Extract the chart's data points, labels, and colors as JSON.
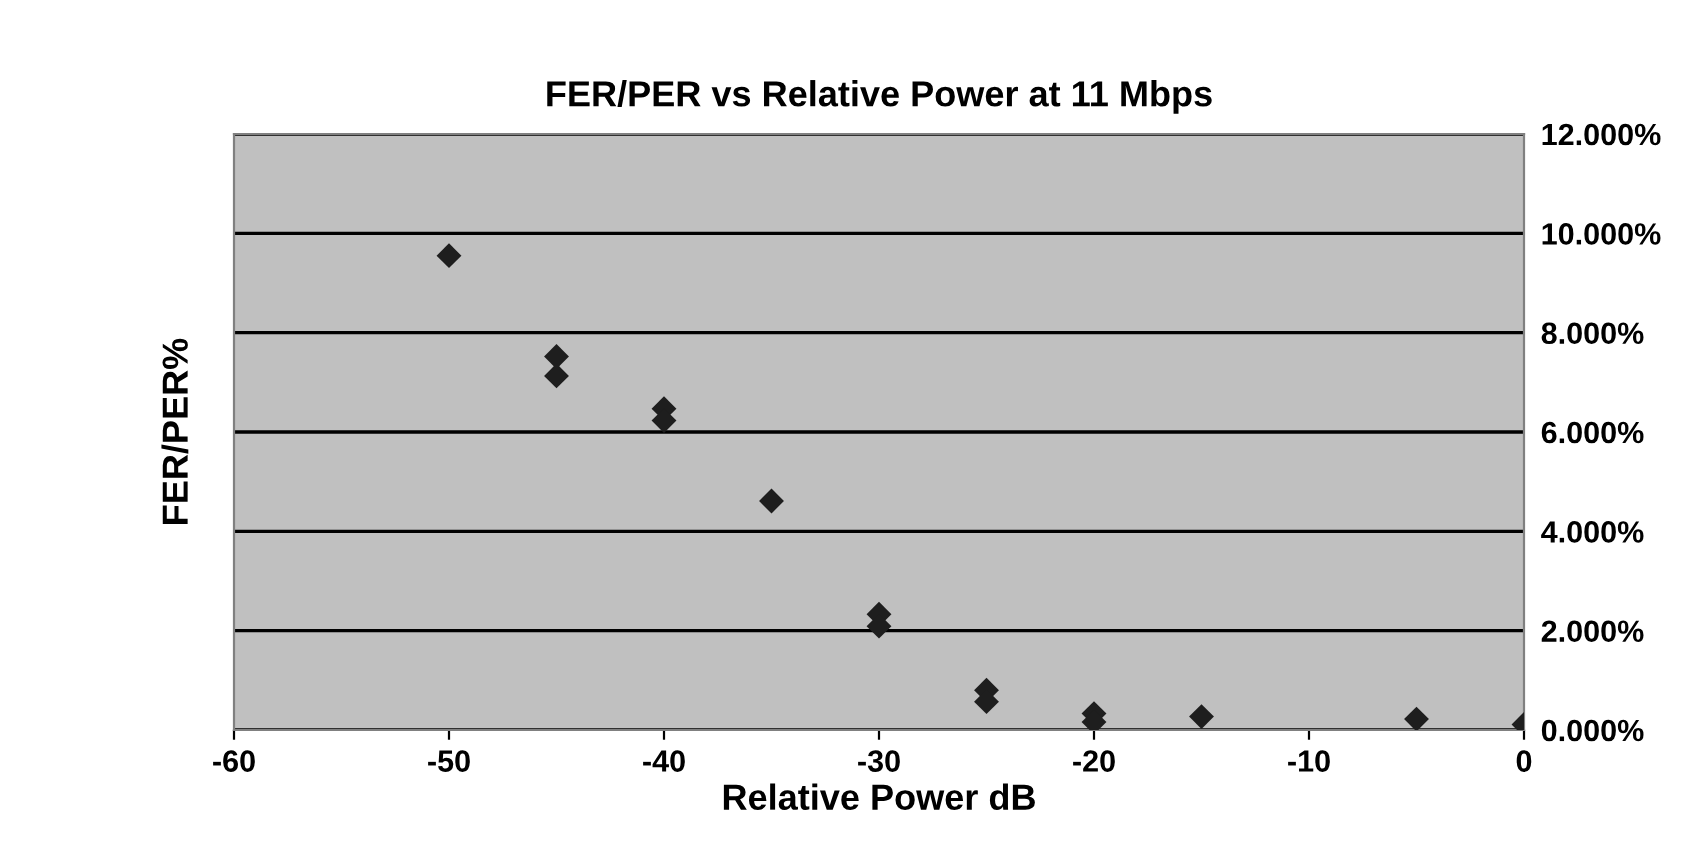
{
  "chart_data": {
    "type": "scatter",
    "title": "FER/PER vs Relative Power at 11 Mbps",
    "xlabel": "Relative Power dB",
    "ylabel": "FER/PER%",
    "series": [
      {
        "color": "#1e1e1e",
        "x": [
          -50,
          -45,
          -45,
          -40,
          -40,
          -35,
          -30,
          -30,
          -25,
          -25,
          -20,
          -20,
          -15,
          -5,
          0
        ],
        "values": [
          9.55,
          7.52,
          7.13,
          6.47,
          6.23,
          4.61,
          2.33,
          2.09,
          0.8,
          0.57,
          0.33,
          0.16,
          0.27,
          0.22,
          0.11
        ]
      }
    ],
    "marker": "diamond",
    "grid": "y",
    "legend": false,
    "xlim": [
      -60,
      0
    ],
    "xticks": [
      -60,
      -50,
      -40,
      -30,
      -20,
      -10,
      0
    ],
    "ylim": [
      0,
      12
    ],
    "yticks": [
      {
        "value": 0,
        "label": "0.000%"
      },
      {
        "value": 2,
        "label": "2.000%"
      },
      {
        "value": 4,
        "label": "4.000%"
      },
      {
        "value": 6,
        "label": "6.000%"
      },
      {
        "value": 8,
        "label": "8.000%"
      },
      {
        "value": 10,
        "label": "10.000%"
      },
      {
        "value": 12,
        "label": "12.000%"
      }
    ]
  }
}
